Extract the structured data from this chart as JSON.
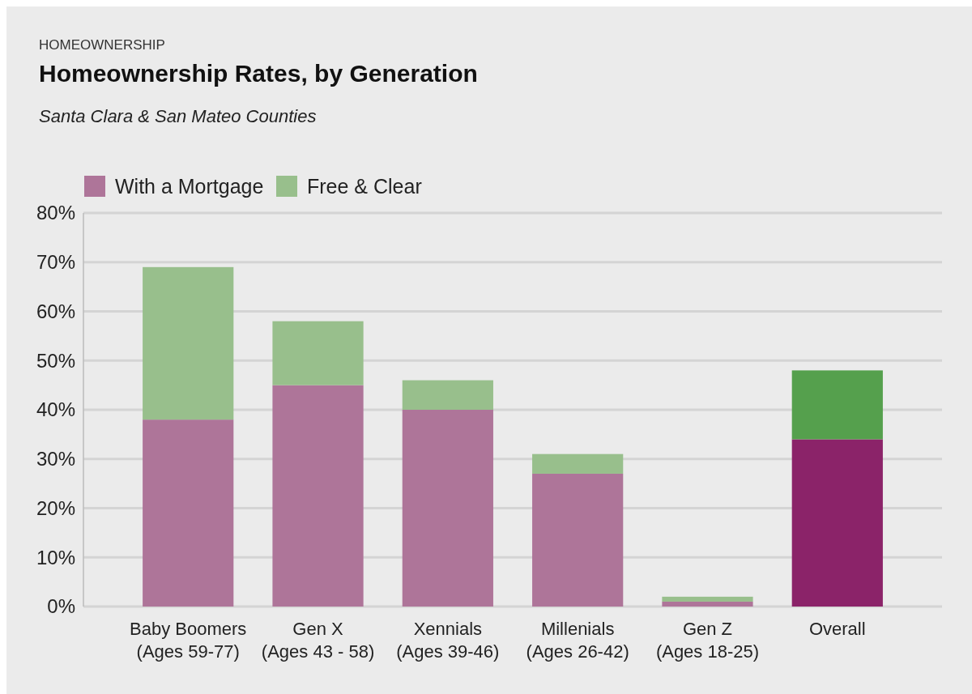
{
  "chart_data": {
    "type": "bar",
    "title": "Homeownership Rates, by Generation",
    "subtitle": "Santa Clara & San Mateo Counties",
    "annotations": [
      "HOMEOWNERSHIP"
    ],
    "categories": [
      "Baby Boomers\n(Ages 59-77)",
      "Gen X\n(Ages 43 - 58)",
      "Xennials\n(Ages 39-46)",
      "Millenials\n(Ages 26-42)",
      "Gen Z\n(Ages 18-25)",
      "Overall"
    ],
    "stacked": true,
    "series": [
      {
        "name": "With a Mortgage",
        "color": "#ae7599",
        "colors": [
          "#ae7599",
          "#ae7599",
          "#ae7599",
          "#ae7599",
          "#ae7599",
          "#8b2369"
        ],
        "values": [
          38,
          45,
          40,
          27,
          1,
          34
        ]
      },
      {
        "name": "Free & Clear",
        "color": "#98bf8c",
        "colors": [
          "#98bf8c",
          "#98bf8c",
          "#98bf8c",
          "#98bf8c",
          "#98bf8c",
          "#55a04d"
        ],
        "values": [
          31,
          13,
          6,
          4,
          1,
          14
        ]
      }
    ],
    "ylim": [
      0,
      80
    ],
    "yticks": [
      {
        "value": 0,
        "label": "0%"
      },
      {
        "value": 10,
        "label": "10%"
      },
      {
        "value": 20,
        "label": "20%"
      },
      {
        "value": 30,
        "label": "30%"
      },
      {
        "value": 40,
        "label": "40%"
      },
      {
        "value": 50,
        "label": "50%"
      },
      {
        "value": 60,
        "label": "60%"
      },
      {
        "value": 70,
        "label": "70%"
      },
      {
        "value": 80,
        "label": "80%"
      }
    ],
    "grid": "y",
    "legend": "top left"
  }
}
